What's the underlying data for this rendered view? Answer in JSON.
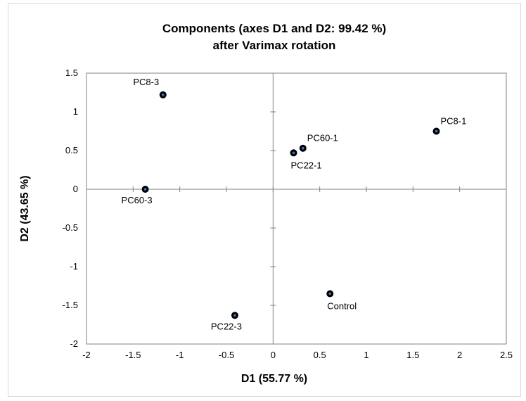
{
  "chart_data": {
    "type": "scatter",
    "title": [
      "Components  (axes D1 and D2: 99.42 %)",
      "after Varimax rotation"
    ],
    "xlabel": "D1  (55.77 %)",
    "ylabel": "D2  (43.65 %)",
    "xlim": [
      -2,
      2.5
    ],
    "ylim": [
      -2,
      1.5
    ],
    "xticks": [
      "-2",
      "-1.5",
      "-1",
      "-0.5",
      "0",
      "0.5",
      "1",
      "1.5",
      "2",
      "2.5"
    ],
    "yticks": [
      "-2",
      "-1.5",
      "-1",
      "-0.5",
      "0",
      "0.5",
      "1",
      "1.5"
    ],
    "grid": false,
    "legend": "none",
    "marker_color": "#000000",
    "marker_center_color": "#4472c4",
    "points": [
      {
        "label": "PC8-3",
        "x": -1.18,
        "y": 1.22,
        "label_pos": "above-left"
      },
      {
        "label": "PC8-1",
        "x": 1.75,
        "y": 0.75,
        "label_pos": "above-right"
      },
      {
        "label": "PC60-1",
        "x": 0.32,
        "y": 0.53,
        "label_pos": "above-right"
      },
      {
        "label": "PC22-1",
        "x": 0.22,
        "y": 0.47,
        "label_pos": "below-right"
      },
      {
        "label": "PC60-3",
        "x": -1.37,
        "y": 0.0,
        "label_pos": "below"
      },
      {
        "label": "PC22-3",
        "x": -0.41,
        "y": -1.63,
        "label_pos": "below"
      },
      {
        "label": "Control",
        "x": 0.61,
        "y": -1.35,
        "label_pos": "below-right"
      }
    ]
  }
}
